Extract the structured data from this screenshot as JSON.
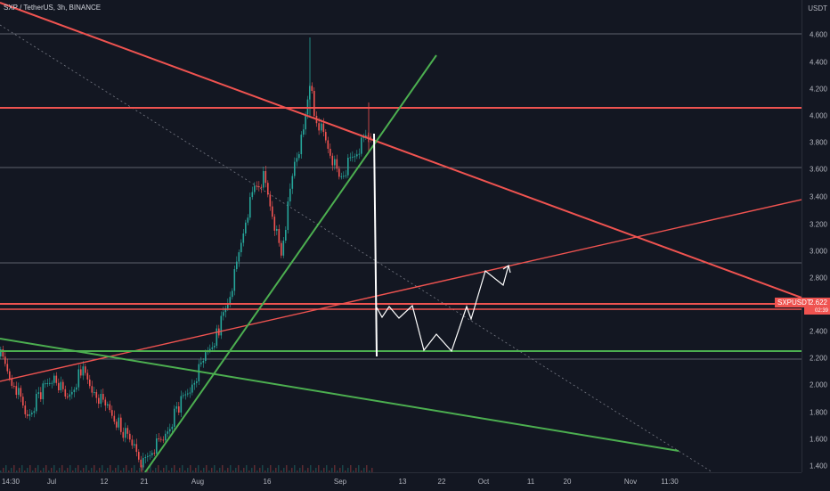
{
  "header": {
    "symbol_title": "SXP / TetherUS, 3h, BINANCE",
    "currency": "USDT"
  },
  "price_axis": {
    "ticks": [
      "4.600",
      "4.400",
      "4.200",
      "4.000",
      "3.800",
      "3.600",
      "3.400",
      "3.200",
      "3.000",
      "2.800",
      "2.600",
      "2.400",
      "2.200",
      "2.000",
      "1.800",
      "1.600",
      "1.400"
    ]
  },
  "time_axis": {
    "ticks": [
      "14:30",
      "Jul",
      "12",
      "21",
      "Aug",
      "16",
      "Sep",
      "13",
      "22",
      "Oct",
      "11",
      "20",
      "Nov",
      "11:30"
    ]
  },
  "price_badge": {
    "symbol": "SXPUSDT",
    "value": "2.622",
    "sub": "02:39"
  },
  "colors": {
    "background": "#131722",
    "red_line": "#ef5350",
    "green_line": "#4caf50",
    "candle_up": "#26a69a",
    "candle_down": "#ef5350",
    "projection": "#ffffff"
  }
}
